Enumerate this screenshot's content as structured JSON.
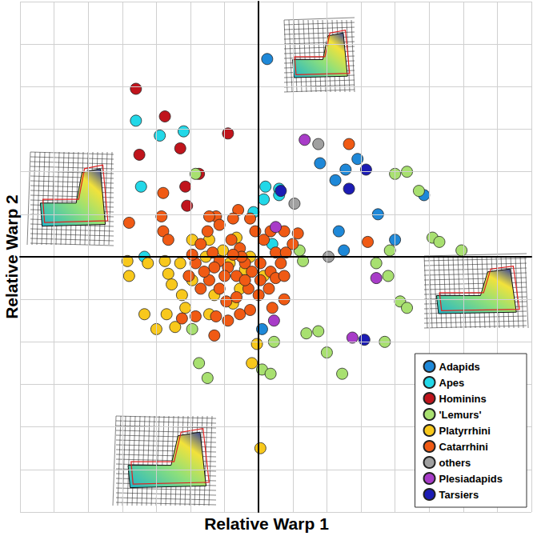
{
  "chart_data": {
    "type": "scatter",
    "x_label": "Relative Warp 1",
    "y_label": "Relative Warp 2",
    "xlim": [
      -0.14,
      0.16
    ],
    "ylim": [
      -0.12,
      0.12
    ],
    "xticks": [
      -0.14,
      -0.12,
      -0.1,
      -0.08,
      -0.06,
      -0.04,
      -0.02,
      0,
      0.02,
      0.04,
      0.06,
      0.08,
      0.1,
      0.12,
      0.14,
      0.16
    ],
    "yticks": [
      -0.12,
      -0.1,
      -0.08,
      -0.06,
      -0.04,
      -0.02,
      0,
      0.02,
      0.04,
      0.06,
      0.08,
      0.1,
      0.12
    ],
    "grid": true,
    "tick_labels": false,
    "legend": "lower right",
    "marker": "circle",
    "series": [
      {
        "name": "Adapids",
        "color": "#1e88d8",
        "x": [
          0.005,
          0.036,
          0.045,
          0.051,
          0.058,
          0.097,
          0.07,
          0.047,
          0.08,
          0.05,
          0.002
        ],
        "y": [
          0.093,
          0.044,
          0.036,
          0.041,
          0.046,
          0.029,
          0.02,
          0.012,
          0.008,
          0.003,
          -0.034
        ]
      },
      {
        "name": "Apes",
        "color": "#22d8e8",
        "x": [
          -0.072,
          -0.058,
          -0.044,
          -0.069,
          -0.067,
          0.004,
          0.012,
          0.003,
          0.012,
          -0.003,
          0.008
        ],
        "y": [
          0.064,
          0.057,
          0.059,
          0.033,
          0.0,
          0.033,
          0.032,
          0.027,
          0.029,
          0.021,
          0.006
        ]
      },
      {
        "name": "Hominins",
        "color": "#c0141c",
        "x": [
          -0.072,
          -0.055,
          -0.07,
          -0.046,
          -0.018,
          -0.035,
          -0.043,
          -0.042
        ],
        "y": [
          0.079,
          0.066,
          0.048,
          0.051,
          0.058,
          0.039,
          0.033,
          0.024
        ]
      },
      {
        "name": "'Lemurs'",
        "color": "#a8e070",
        "x": [
          0.08,
          0.087,
          0.094,
          -0.037,
          0.102,
          0.106,
          0.119,
          0.077,
          0.026,
          0.076,
          0.083,
          0.087,
          0.074,
          0.049,
          0.028,
          0.04,
          0.009,
          0.002,
          0.007,
          -0.035,
          -0.03,
          -0.039,
          0.035,
          0.069,
          0.024
        ],
        "y": [
          0.039,
          0.04,
          0.031,
          0.039,
          0.009,
          0.007,
          0.003,
          0.003,
          -0.002,
          -0.009,
          -0.021,
          -0.024,
          -0.04,
          -0.055,
          -0.036,
          -0.045,
          -0.04,
          -0.053,
          -0.055,
          -0.05,
          -0.057,
          -0.034,
          -0.035,
          -0.003,
          0.003
        ]
      },
      {
        "name": "Platyrrhini",
        "color": "#f8c81c",
        "x": [
          -0.077,
          -0.076,
          -0.065,
          -0.055,
          -0.053,
          -0.051,
          -0.045,
          -0.043,
          -0.054,
          -0.067,
          -0.049,
          -0.06,
          -0.039,
          -0.029,
          -0.013,
          -0.021,
          -0.005,
          -0.008,
          0.003,
          -0.001,
          -0.004,
          0.001,
          -0.026,
          -0.039,
          -0.031,
          -0.017,
          -0.011,
          -0.029,
          -0.015,
          -0.046
        ],
        "y": [
          -0.002,
          -0.009,
          -0.003,
          -0.002,
          -0.008,
          -0.013,
          -0.018,
          -0.024,
          -0.027,
          -0.027,
          -0.033,
          -0.034,
          0.008,
          0.008,
          0.009,
          0.003,
          0.0,
          -0.006,
          -0.009,
          -0.041,
          -0.05,
          -0.09,
          -0.018,
          -0.011,
          0.0,
          -0.003,
          -0.015,
          -0.027,
          -0.022,
          -0.003
        ]
      },
      {
        "name": "Catarrhini",
        "color": "#f05a14",
        "x": [
          -0.076,
          -0.056,
          -0.057,
          -0.056,
          0.053,
          0.064,
          -0.012,
          -0.025,
          -0.034,
          -0.027,
          -0.023,
          -0.018,
          -0.013,
          -0.008,
          -0.004,
          0.001,
          0.007,
          0.013,
          0.01,
          0.016,
          0.003,
          -0.002,
          -0.011,
          -0.016,
          -0.023,
          -0.03,
          -0.037,
          -0.041,
          -0.034,
          -0.029,
          -0.023,
          -0.019,
          -0.013,
          -0.006,
          0.0,
          0.006,
          0.01,
          0.015,
          -0.025,
          -0.018,
          -0.011,
          -0.005,
          -0.026,
          -0.037,
          -0.045,
          0.008,
          0.015,
          -0.01,
          -0.015,
          -0.02,
          -0.026,
          -0.032,
          -0.039,
          0.007,
          0.02,
          -0.005,
          -0.015,
          -0.029,
          -0.053,
          0.015,
          0.023,
          -0.008,
          0.001
        ],
        "y": [
          0.016,
          0.03,
          0.019,
          0.012,
          0.053,
          0.007,
          0.022,
          0.019,
          0.006,
          0.002,
          -0.002,
          -0.005,
          -0.009,
          -0.003,
          -0.007,
          -0.003,
          -0.007,
          -0.003,
          0.002,
          0.002,
          0.008,
          0.012,
          0.004,
          0.008,
          0.015,
          0.012,
          -0.003,
          -0.009,
          -0.015,
          -0.011,
          -0.015,
          -0.021,
          -0.019,
          -0.015,
          -0.018,
          -0.015,
          -0.01,
          -0.009,
          -0.028,
          -0.03,
          -0.027,
          -0.025,
          -0.037,
          -0.028,
          -0.029,
          -0.024,
          -0.02,
          0.0,
          0.001,
          -0.009,
          -0.005,
          -0.007,
          0.001,
          0.012,
          0.006,
          0.018,
          0.018,
          0.019,
          0.008,
          0.012,
          0.011,
          -0.011,
          -0.011
        ]
      },
      {
        "name": "others",
        "color": "#a0a0a0",
        "x": [
          0.035,
          0.021,
          0.041
        ],
        "y": [
          0.053,
          0.025,
          0.0
        ]
      },
      {
        "name": "Plesiadapids",
        "color": "#a83cc8",
        "x": [
          0.027,
          0.01,
          0.009,
          0.069,
          0.055
        ],
        "y": [
          0.055,
          0.014,
          -0.03,
          -0.01,
          -0.038
        ]
      },
      {
        "name": "Tarsiers",
        "color": "#1c1cb4",
        "x": [
          0.063,
          0.053,
          0.013,
          0.062
        ],
        "y": [
          0.041,
          0.032,
          0.031,
          -0.039
        ]
      }
    ]
  }
}
